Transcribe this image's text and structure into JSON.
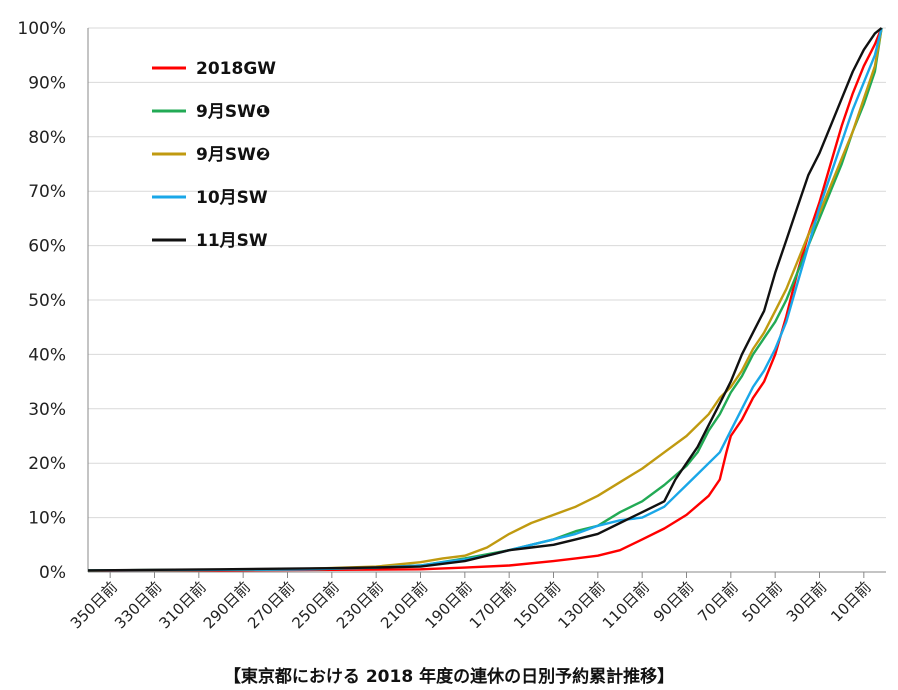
{
  "chart_data": {
    "type": "line",
    "title": "",
    "caption": "【東京都における 2018 年度の連休の日別予約累計推移】",
    "xlabel": "",
    "ylabel": "",
    "x_tick_labels": [
      "350日前",
      "330日前",
      "310日前",
      "290日前",
      "270日前",
      "250日前",
      "230日前",
      "210日前",
      "190日前",
      "170日前",
      "150日前",
      "130日前",
      "110日前",
      "90日前",
      "70日前",
      "50日前",
      "30日前",
      "10日前"
    ],
    "x_tick_values": [
      350,
      330,
      310,
      290,
      270,
      250,
      230,
      210,
      190,
      170,
      150,
      130,
      110,
      90,
      70,
      50,
      30,
      10
    ],
    "xlim": [
      360,
      0
    ],
    "y_tick_labels": [
      "0%",
      "10%",
      "20%",
      "30%",
      "40%",
      "50%",
      "60%",
      "70%",
      "80%",
      "90%",
      "100%"
    ],
    "ylim": [
      0,
      100
    ],
    "grid": "horizontal",
    "legend_position": "top-left",
    "series": [
      {
        "name": "2018GW",
        "color": "#ff0000",
        "points": [
          [
            360,
            0.3
          ],
          [
            300,
            0.3
          ],
          [
            250,
            0.4
          ],
          [
            210,
            0.5
          ],
          [
            190,
            0.8
          ],
          [
            170,
            1.2
          ],
          [
            150,
            2
          ],
          [
            140,
            2.5
          ],
          [
            130,
            3
          ],
          [
            120,
            4
          ],
          [
            110,
            6
          ],
          [
            100,
            8
          ],
          [
            90,
            10.5
          ],
          [
            80,
            14
          ],
          [
            75,
            17
          ],
          [
            72,
            22
          ],
          [
            70,
            25
          ],
          [
            65,
            28
          ],
          [
            60,
            32
          ],
          [
            55,
            35
          ],
          [
            50,
            40
          ],
          [
            45,
            47
          ],
          [
            40,
            55
          ],
          [
            35,
            62
          ],
          [
            30,
            68
          ],
          [
            25,
            75
          ],
          [
            20,
            82
          ],
          [
            15,
            88
          ],
          [
            10,
            93
          ],
          [
            5,
            97
          ],
          [
            2,
            100
          ]
        ]
      },
      {
        "name": "9月SW❶",
        "color": "#22aa55",
        "points": [
          [
            360,
            0.3
          ],
          [
            300,
            0.4
          ],
          [
            260,
            0.5
          ],
          [
            230,
            0.8
          ],
          [
            210,
            1.2
          ],
          [
            190,
            2.5
          ],
          [
            170,
            4
          ],
          [
            160,
            5
          ],
          [
            150,
            6
          ],
          [
            140,
            7.5
          ],
          [
            130,
            8.5
          ],
          [
            120,
            11
          ],
          [
            110,
            13
          ],
          [
            100,
            16
          ],
          [
            90,
            19.5
          ],
          [
            85,
            22
          ],
          [
            80,
            26
          ],
          [
            75,
            29
          ],
          [
            70,
            33
          ],
          [
            65,
            36
          ],
          [
            60,
            40
          ],
          [
            55,
            43
          ],
          [
            50,
            46
          ],
          [
            45,
            50
          ],
          [
            40,
            55
          ],
          [
            35,
            60
          ],
          [
            30,
            65
          ],
          [
            25,
            70
          ],
          [
            20,
            75
          ],
          [
            15,
            81
          ],
          [
            10,
            86
          ],
          [
            5,
            92
          ],
          [
            2,
            100
          ]
        ]
      },
      {
        "name": "9月SW❷",
        "color": "#c09a10",
        "points": [
          [
            360,
            0.3
          ],
          [
            300,
            0.4
          ],
          [
            260,
            0.6
          ],
          [
            230,
            1
          ],
          [
            210,
            1.8
          ],
          [
            200,
            2.5
          ],
          [
            190,
            3
          ],
          [
            180,
            4.5
          ],
          [
            170,
            7
          ],
          [
            160,
            9
          ],
          [
            150,
            10.5
          ],
          [
            140,
            12
          ],
          [
            130,
            14
          ],
          [
            120,
            16.5
          ],
          [
            110,
            19
          ],
          [
            100,
            22
          ],
          [
            90,
            25
          ],
          [
            85,
            27
          ],
          [
            80,
            29
          ],
          [
            75,
            32
          ],
          [
            70,
            34
          ],
          [
            65,
            37
          ],
          [
            60,
            41
          ],
          [
            55,
            44
          ],
          [
            50,
            48
          ],
          [
            45,
            52
          ],
          [
            40,
            57
          ],
          [
            35,
            62
          ],
          [
            30,
            66
          ],
          [
            25,
            71
          ],
          [
            20,
            76
          ],
          [
            15,
            81
          ],
          [
            10,
            87
          ],
          [
            5,
            93
          ],
          [
            2,
            100
          ]
        ]
      },
      {
        "name": "10月SW",
        "color": "#1aa7e8",
        "points": [
          [
            360,
            0.3
          ],
          [
            300,
            0.4
          ],
          [
            260,
            0.5
          ],
          [
            230,
            0.8
          ],
          [
            210,
            1.2
          ],
          [
            200,
            1.8
          ],
          [
            190,
            2.3
          ],
          [
            180,
            3
          ],
          [
            170,
            4
          ],
          [
            160,
            5
          ],
          [
            150,
            6
          ],
          [
            140,
            7
          ],
          [
            130,
            8.5
          ],
          [
            120,
            9.5
          ],
          [
            110,
            10
          ],
          [
            100,
            12
          ],
          [
            95,
            14
          ],
          [
            90,
            16
          ],
          [
            85,
            18
          ],
          [
            80,
            20
          ],
          [
            75,
            22
          ],
          [
            70,
            26
          ],
          [
            65,
            30
          ],
          [
            60,
            34
          ],
          [
            55,
            37
          ],
          [
            50,
            41
          ],
          [
            45,
            46
          ],
          [
            40,
            53
          ],
          [
            35,
            60
          ],
          [
            30,
            67
          ],
          [
            25,
            73
          ],
          [
            20,
            79
          ],
          [
            15,
            85
          ],
          [
            10,
            90
          ],
          [
            5,
            95
          ],
          [
            2,
            100
          ]
        ]
      },
      {
        "name": "11月SW",
        "color": "#111111",
        "points": [
          [
            360,
            0.3
          ],
          [
            300,
            0.5
          ],
          [
            250,
            0.7
          ],
          [
            220,
            0.9
          ],
          [
            210,
            1
          ],
          [
            200,
            1.5
          ],
          [
            190,
            2
          ],
          [
            180,
            3
          ],
          [
            170,
            4
          ],
          [
            160,
            4.5
          ],
          [
            150,
            5
          ],
          [
            140,
            6
          ],
          [
            130,
            7
          ],
          [
            120,
            9
          ],
          [
            110,
            11
          ],
          [
            100,
            13
          ],
          [
            95,
            17
          ],
          [
            90,
            20
          ],
          [
            85,
            23
          ],
          [
            80,
            27
          ],
          [
            75,
            31
          ],
          [
            70,
            35
          ],
          [
            65,
            40
          ],
          [
            60,
            44
          ],
          [
            55,
            48
          ],
          [
            50,
            55
          ],
          [
            45,
            61
          ],
          [
            40,
            67
          ],
          [
            35,
            73
          ],
          [
            30,
            77
          ],
          [
            25,
            82
          ],
          [
            20,
            87
          ],
          [
            15,
            92
          ],
          [
            10,
            96
          ],
          [
            5,
            99
          ],
          [
            2,
            100
          ]
        ]
      }
    ]
  }
}
